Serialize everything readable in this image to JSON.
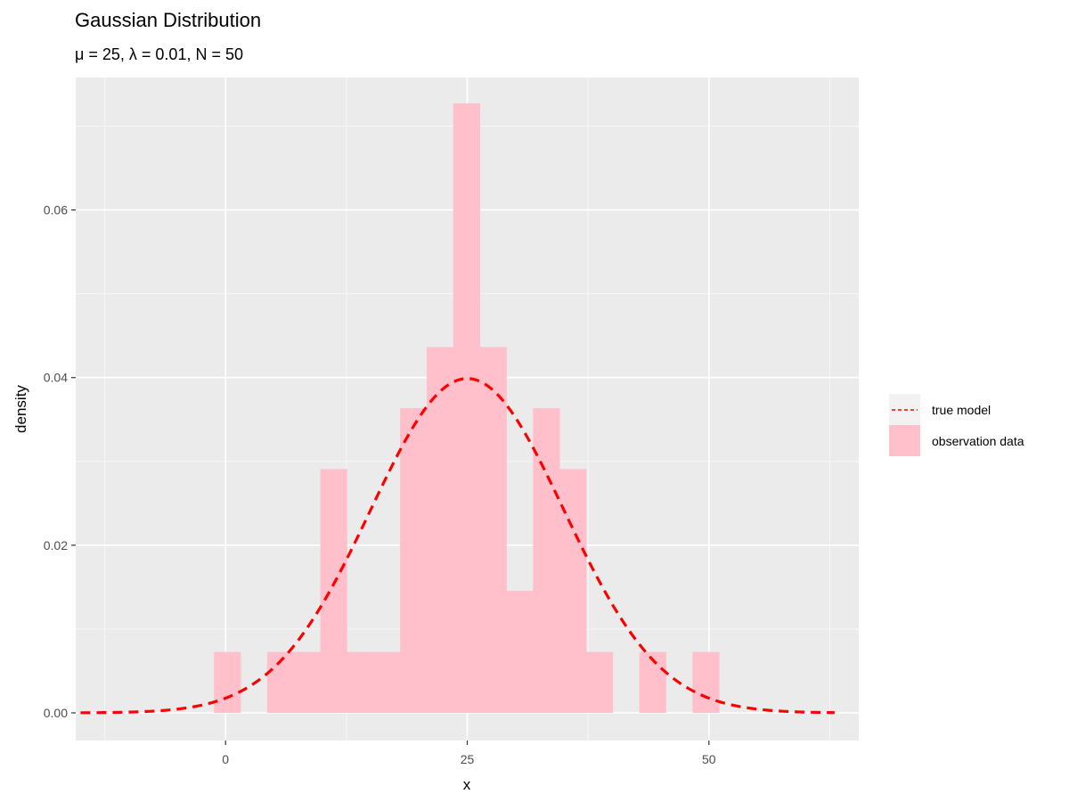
{
  "chart_data": {
    "type": "bar",
    "title": "Gaussian Distribution",
    "subtitle": "μ = 25, λ = 0.01, N = 50",
    "xlabel": "x",
    "ylabel": "density",
    "xlim": [
      -15.5,
      65.5
    ],
    "ylim": [
      -0.0033,
      0.0758
    ],
    "x_ticks": [
      0,
      25,
      50
    ],
    "x_tick_labels": [
      "0",
      "25",
      "50"
    ],
    "y_ticks": [
      0,
      0.02,
      0.04,
      0.06
    ],
    "y_tick_labels": [
      "0.00",
      "0.02",
      "0.04",
      "0.06"
    ],
    "grid": true,
    "legend_position": "right",
    "histogram": {
      "name": "observation data",
      "color": "#ffc0cb",
      "bin_width": 2.75,
      "bins": [
        {
          "x_start": -1.2,
          "density": 0.00727
        },
        {
          "x_start": 4.3,
          "density": 0.00727
        },
        {
          "x_start": 7.05,
          "density": 0.00727
        },
        {
          "x_start": 9.8,
          "density": 0.02909
        },
        {
          "x_start": 12.55,
          "density": 0.00727
        },
        {
          "x_start": 15.3,
          "density": 0.00727
        },
        {
          "x_start": 18.05,
          "density": 0.03636
        },
        {
          "x_start": 20.8,
          "density": 0.04364
        },
        {
          "x_start": 23.55,
          "density": 0.07273
        },
        {
          "x_start": 26.3,
          "density": 0.04364
        },
        {
          "x_start": 29.05,
          "density": 0.01455
        },
        {
          "x_start": 31.8,
          "density": 0.03636
        },
        {
          "x_start": 34.55,
          "density": 0.02909
        },
        {
          "x_start": 37.3,
          "density": 0.00727
        },
        {
          "x_start": 42.8,
          "density": 0.00727
        },
        {
          "x_start": 48.3,
          "density": 0.00727
        }
      ]
    },
    "curve": {
      "name": "true model",
      "color": "#ff0000",
      "style": "dashed",
      "mu": 25,
      "lambda": 0.01,
      "x_range": [
        -15,
        63
      ]
    },
    "legend": [
      {
        "label": "true model",
        "kind": "line"
      },
      {
        "label": "observation data",
        "kind": "fill"
      }
    ]
  }
}
